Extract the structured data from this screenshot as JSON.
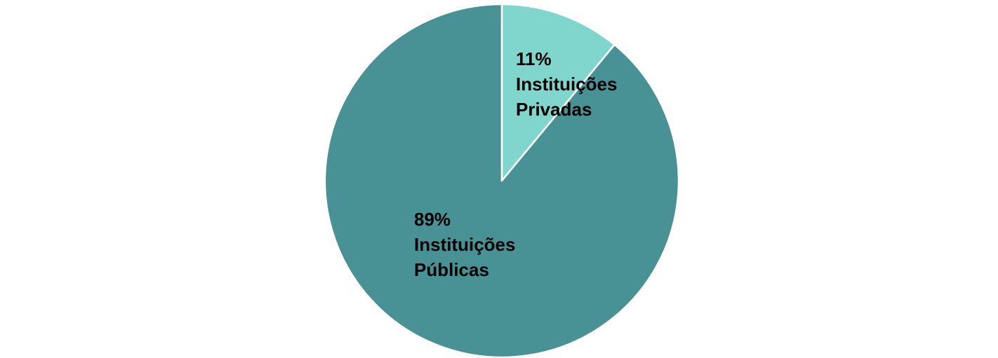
{
  "chart_data": {
    "type": "pie",
    "slices": [
      {
        "label_lines": [
          "11%",
          "Instituições",
          "Privadas"
        ],
        "value": 11,
        "color": "#80d5cd"
      },
      {
        "label_lines": [
          "89%",
          "Instituições",
          "Públicas"
        ],
        "value": 89,
        "color": "#489194"
      }
    ],
    "start_angle_deg": 0,
    "direction": "clockwise",
    "legend": "none",
    "separator_color": "#ffffff"
  }
}
